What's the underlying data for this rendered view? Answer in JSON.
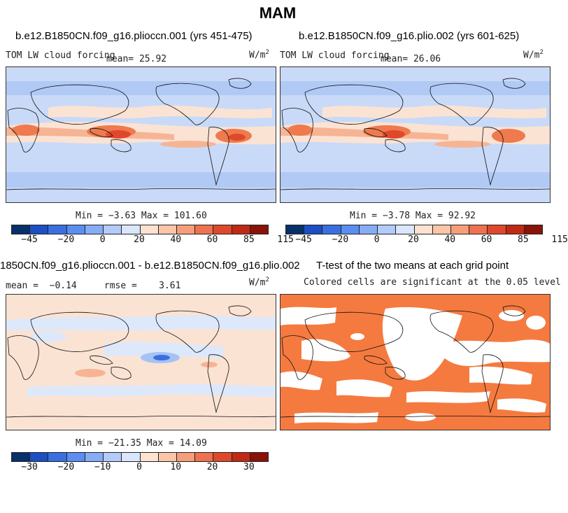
{
  "title": "MAM",
  "panels": [
    {
      "subtitle": "b.e12.B1850CN.f09_g16.plioccn.001 (yrs 451-475)",
      "var_label": "TOM LW cloud forcing",
      "mean_label": "mean=  25.92",
      "units": "W/m",
      "units_exp": "2",
      "minmax": "Min =  −3.63 Max = 101.60"
    },
    {
      "subtitle": "b.e12.B1850CN.f09_g16.plio.002 (yrs 601-625)",
      "var_label": "TOM LW cloud forcing",
      "mean_label": "mean=  26.06",
      "units": "W/m",
      "units_exp": "2",
      "minmax": "Min =  −3.78 Max =  92.92"
    },
    {
      "subtitle": "1850CN.f09_g16.plioccn.001 - b.e12.B1850CN.f09_g16.plio.002",
      "stats": "mean =  −0.14     rmse =    3.61",
      "units": "W/m",
      "units_exp": "2",
      "minmax": "Min = −21.35 Max =  14.09"
    },
    {
      "subtitle": "T-test of the two means at each grid point",
      "note": "Colored cells are significant at the 0.05 level"
    }
  ],
  "colorbar_main": {
    "colors": [
      "#08306b",
      "#1c4fc4",
      "#3a6fe0",
      "#5b8ef0",
      "#86acf6",
      "#b3cbfa",
      "#d9e6fc",
      "#fde2d2",
      "#fbc5a8",
      "#f59e7a",
      "#ee7150",
      "#e0482c",
      "#c02a15",
      "#8a1308"
    ],
    "ticks": [
      "−45",
      "−20",
      "0",
      "20",
      "40",
      "60",
      "85",
      "115"
    ]
  },
  "colorbar_diff": {
    "colors": [
      "#08306b",
      "#1c4fc4",
      "#3a6fe0",
      "#5b8ef0",
      "#86acf6",
      "#b3cbfa",
      "#d9e6fc",
      "#fde2d2",
      "#fbc5a8",
      "#f59e7a",
      "#ee7150",
      "#e0482c",
      "#c02a15",
      "#8a1308"
    ],
    "ticks": [
      "−30",
      "−20",
      "−10",
      "0",
      "10",
      "20",
      "30"
    ]
  },
  "colors": {
    "bg_blue": "#c9daf8",
    "light_blue": "#dde8fb",
    "mid_blue": "#a6c2f3",
    "cream": "#fbe3d3",
    "salmon": "#f6b494",
    "orange": "#ee7a4e",
    "red": "#e0482c",
    "deep_blue": "#3a6fe0",
    "ttest": "#f57a3f"
  }
}
